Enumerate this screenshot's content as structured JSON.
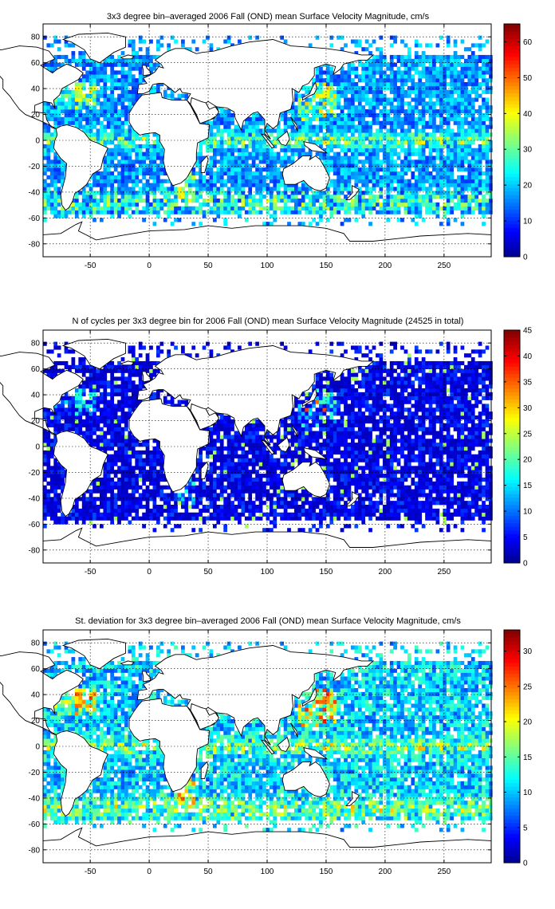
{
  "colormap": "jet",
  "colors": {
    "jet_stops": [
      "#00008f",
      "#0000ff",
      "#00ffff",
      "#ffff00",
      "#ff0000",
      "#800000"
    ],
    "land": "#ffffff",
    "frame": "#000000"
  },
  "chart_data": [
    {
      "type": "heatmap",
      "title": "3x3 degree bin–averaged 2006 Fall (OND) mean Surface Velocity Magnitude, cm/s",
      "xlabel": "",
      "ylabel": "",
      "xlim": [
        -90,
        290
      ],
      "ylim": [
        -90,
        90
      ],
      "xticks": [
        -50,
        0,
        50,
        100,
        150,
        200,
        250
      ],
      "yticks": [
        -80,
        -60,
        -40,
        -20,
        0,
        20,
        40,
        60,
        80
      ],
      "grid": true,
      "bin_size_deg": 3,
      "colorbar": {
        "min": 0,
        "max": 65,
        "ticks": [
          0,
          10,
          20,
          30,
          40,
          50,
          60
        ]
      },
      "field": "velocity"
    },
    {
      "type": "heatmap",
      "title": "N of cycles per 3x3 degree bin for 2006 Fall (OND) mean Surface Velocity Magnitude (24525 in total)",
      "xlabel": "",
      "ylabel": "",
      "xlim": [
        -90,
        290
      ],
      "ylim": [
        -90,
        90
      ],
      "xticks": [
        -50,
        0,
        50,
        100,
        150,
        200,
        250
      ],
      "yticks": [
        -80,
        -60,
        -40,
        -20,
        0,
        20,
        40,
        60,
        80
      ],
      "grid": true,
      "bin_size_deg": 3,
      "colorbar": {
        "min": 0,
        "max": 45,
        "ticks": [
          0,
          5,
          10,
          15,
          20,
          25,
          30,
          35,
          40,
          45
        ]
      },
      "field": "count"
    },
    {
      "type": "heatmap",
      "title": "St. deviation for 3x3 degree bin–averaged 2006 Fall (OND) mean Surface Velocity Magnitude, cm/s",
      "xlabel": "",
      "ylabel": "",
      "xlim": [
        -90,
        290
      ],
      "ylim": [
        -90,
        90
      ],
      "xticks": [
        -50,
        0,
        50,
        100,
        150,
        200,
        250
      ],
      "yticks": [
        -80,
        -60,
        -40,
        -20,
        0,
        20,
        40,
        60,
        80
      ],
      "grid": true,
      "bin_size_deg": 3,
      "colorbar": {
        "min": 0,
        "max": 33,
        "ticks": [
          0,
          5,
          10,
          15,
          20,
          25,
          30
        ]
      },
      "field": "stdev"
    }
  ]
}
